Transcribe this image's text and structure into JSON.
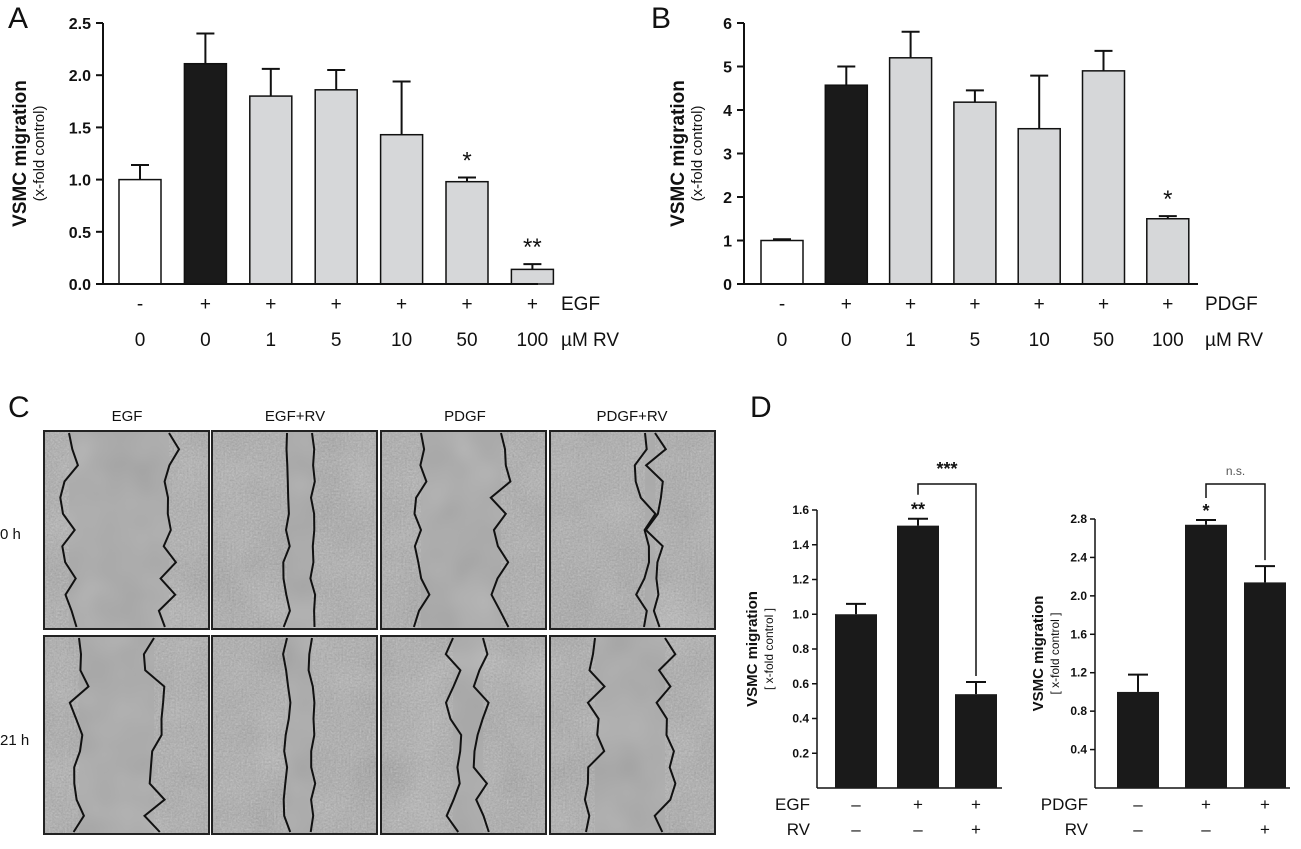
{
  "chart_data": [
    {
      "panel": "A",
      "type": "bar",
      "ylabel": "VSMC migration",
      "ylabel_sub": "(x-fold control)",
      "ylim": [
        0,
        2.5
      ],
      "yticks": [
        "0.0",
        "0.5",
        "1.0",
        "1.5",
        "2.0",
        "2.5"
      ],
      "categories": [
        "-/0",
        "+/0",
        "+/1",
        "+/5",
        "+/10",
        "+/50",
        "+/100"
      ],
      "values": [
        1.0,
        2.11,
        1.8,
        1.86,
        1.43,
        0.98,
        0.14
      ],
      "errors": [
        0.14,
        0.29,
        0.26,
        0.19,
        0.51,
        0.04,
        0.05
      ],
      "fills": [
        "#ffffff",
        "#1a1a1a",
        "#d6d7d9",
        "#d6d7d9",
        "#d6d7d9",
        "#d6d7d9",
        "#d6d7d9"
      ],
      "significance": [
        "",
        "",
        "",
        "",
        "",
        "*",
        "**"
      ],
      "row1": [
        "-",
        "+",
        "+",
        "+",
        "+",
        "+",
        "+"
      ],
      "row1_label": "EGF",
      "row2": [
        "0",
        "0",
        "1",
        "5",
        "10",
        "50",
        "100"
      ],
      "row2_label": "µM RV"
    },
    {
      "panel": "B",
      "type": "bar",
      "ylabel": "VSMC migration",
      "ylabel_sub": "(x-fold control)",
      "ylim": [
        0,
        6
      ],
      "yticks": [
        "0",
        "1",
        "2",
        "3",
        "4",
        "5",
        "6"
      ],
      "categories": [
        "-/0",
        "+/0",
        "+/1",
        "+/5",
        "+/10",
        "+/50",
        "+/100"
      ],
      "values": [
        1.0,
        4.57,
        5.2,
        4.18,
        3.57,
        4.9,
        1.5
      ],
      "errors": [
        0.03,
        0.43,
        0.6,
        0.27,
        1.22,
        0.46,
        0.06
      ],
      "fills": [
        "#ffffff",
        "#1a1a1a",
        "#d6d7d9",
        "#d6d7d9",
        "#d6d7d9",
        "#d6d7d9",
        "#d6d7d9"
      ],
      "significance": [
        "",
        "",
        "",
        "",
        "",
        "",
        "*"
      ],
      "row1": [
        "-",
        "+",
        "+",
        "+",
        "+",
        "+",
        "+"
      ],
      "row1_label": "PDGF",
      "row2": [
        "0",
        "0",
        "1",
        "5",
        "10",
        "50",
        "100"
      ],
      "row2_label": "µM RV"
    },
    {
      "panel": "D-left",
      "type": "bar",
      "ylabel": "VSMC migration",
      "ylabel_sub": "[ x-fold control ]",
      "ylim": [
        0,
        1.6
      ],
      "yticks": [
        "0.2",
        "0.4",
        "0.6",
        "0.8",
        "1.0",
        "1.2",
        "1.4",
        "1.6"
      ],
      "values": [
        1.0,
        1.51,
        0.54
      ],
      "errors": [
        0.06,
        0.04,
        0.07
      ],
      "significance": [
        "",
        "**",
        ""
      ],
      "bracket": {
        "from": 1,
        "to": 2,
        "label": "***"
      },
      "row1_label": "EGF",
      "row1": [
        "–",
        "+",
        "+"
      ],
      "row2_label": "RV",
      "row2": [
        "–",
        "–",
        "+"
      ]
    },
    {
      "panel": "D-right",
      "type": "bar",
      "ylabel": "VSMC migration",
      "ylabel_sub": "[ x-fold control ]",
      "ylim": [
        0,
        2.8
      ],
      "yticks": [
        "0.4",
        "0.8",
        "1.2",
        "1.6",
        "2.0",
        "2.4",
        "2.8"
      ],
      "values": [
        1.0,
        2.74,
        2.14
      ],
      "errors": [
        0.18,
        0.05,
        0.17
      ],
      "significance": [
        "",
        "*",
        ""
      ],
      "bracket": {
        "from": 1,
        "to": 2,
        "label": "n.s."
      },
      "row1_label": "PDGF",
      "row1": [
        "–",
        "+",
        "+"
      ],
      "row2_label": "RV",
      "row2": [
        "–",
        "–",
        "+"
      ]
    }
  ],
  "panel_labels": [
    "A",
    "B",
    "C",
    "D"
  ],
  "micrographs": {
    "columns": [
      "EGF",
      "EGF+RV",
      "PDGF",
      "PDGF+RV"
    ],
    "rows": [
      "0 h",
      "21 h"
    ]
  }
}
